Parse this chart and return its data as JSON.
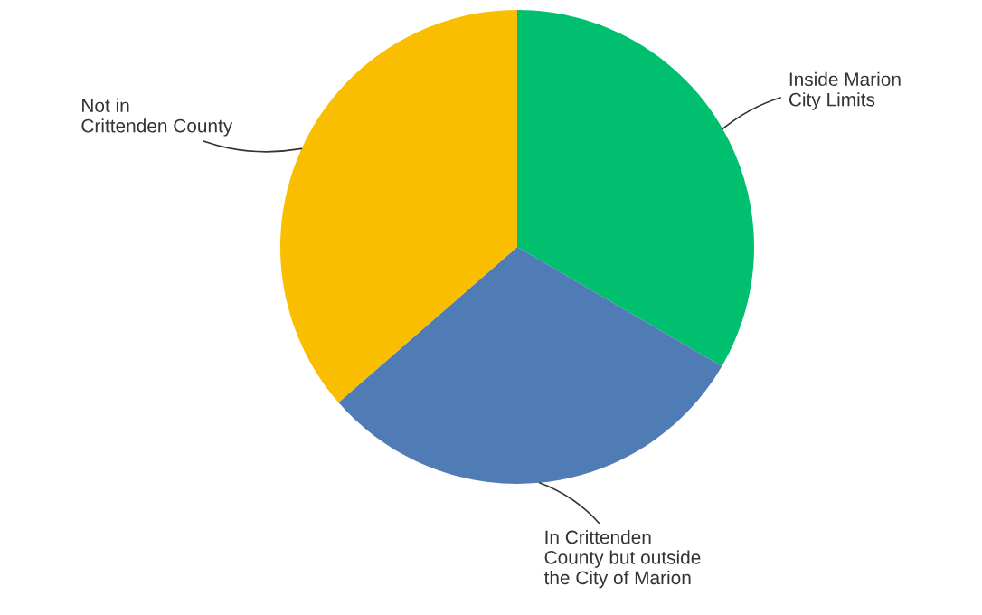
{
  "chart_data": {
    "type": "pie",
    "categories": [
      "Inside Marion\nCity Limits",
      "In Crittenden\nCounty but outside\nthe City of Marion",
      "Not in\nCrittenden County"
    ],
    "values": [
      33.4,
      30.2,
      36.4
    ],
    "colors": [
      "#00bf6f",
      "#507cb6",
      "#f9be00"
    ]
  }
}
